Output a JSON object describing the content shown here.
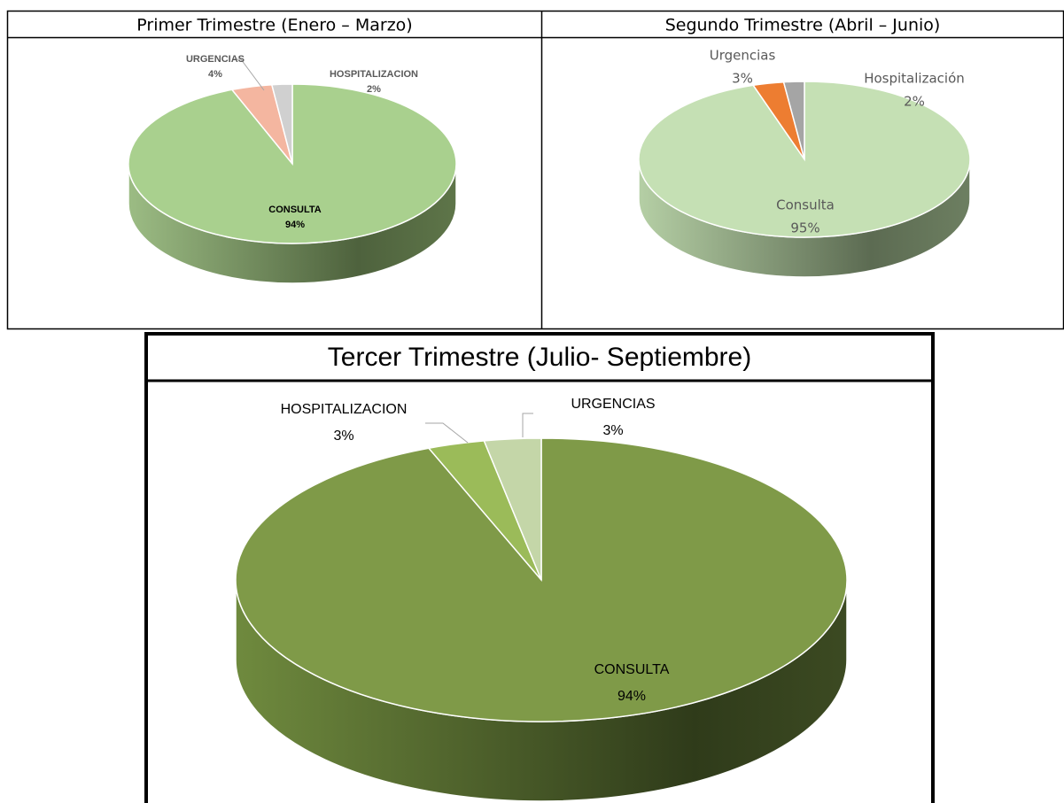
{
  "chart_data": [
    {
      "type": "pie",
      "title": "Primer Trimestre (Enero – Marzo)",
      "categories": [
        "CONSULTA",
        "URGENCIAS",
        "HOSPITALIZACION"
      ],
      "values": [
        94,
        4,
        2
      ],
      "value_labels": [
        "94%",
        "4%",
        "2%"
      ],
      "colors": [
        "#a9d08e",
        "#f4b6a0",
        "#d0d0d0"
      ]
    },
    {
      "type": "pie",
      "title": "Segundo Trimestre (Abril – Junio)",
      "categories": [
        "Consulta",
        "Urgencias",
        "Hospitalización"
      ],
      "values": [
        95,
        3,
        2
      ],
      "value_labels": [
        "95%",
        "3%",
        "2%"
      ],
      "colors": [
        "#c5e0b4",
        "#ed7d31",
        "#a5a5a5"
      ]
    },
    {
      "type": "pie",
      "title": "Tercer  Trimestre (Julio- Septiembre)",
      "categories": [
        "CONSULTA",
        "HOSPITALIZACION",
        "URGENCIAS"
      ],
      "values": [
        94,
        3,
        3
      ],
      "value_labels": [
        "94%",
        "3%",
        "3%"
      ],
      "colors": [
        "#7f9a48",
        "#9bbb59",
        "#c4d6a8"
      ]
    }
  ]
}
